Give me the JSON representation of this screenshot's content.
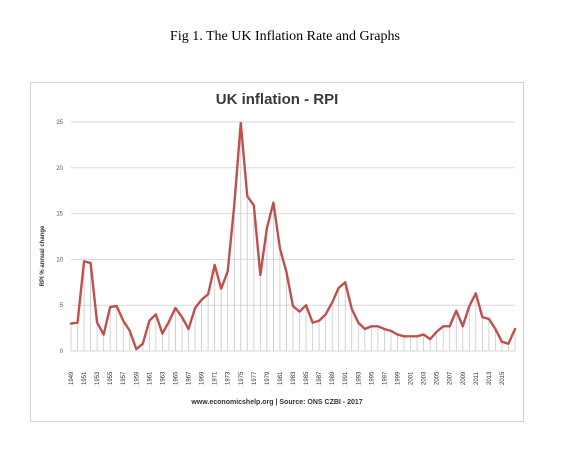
{
  "caption": "Fig 1. The UK Inflation Rate and Graphs",
  "chart_data": {
    "type": "line",
    "title": "UK inflation - RPI",
    "ylabel": "RPI % annual change",
    "xlabel": "",
    "source": "www.economicshelp.org | Source: ONS CZBI - 2017",
    "ylim": [
      0,
      25
    ],
    "yticks": [
      0,
      5,
      10,
      15,
      20,
      25
    ],
    "grid": "horizontal",
    "legend": "none",
    "line_color": "#c0504d",
    "x": [
      1949,
      1950,
      1951,
      1952,
      1953,
      1954,
      1955,
      1956,
      1957,
      1958,
      1959,
      1960,
      1961,
      1962,
      1963,
      1964,
      1965,
      1966,
      1967,
      1968,
      1969,
      1970,
      1971,
      1972,
      1973,
      1974,
      1975,
      1976,
      1977,
      1978,
      1979,
      1980,
      1981,
      1982,
      1983,
      1984,
      1985,
      1986,
      1987,
      1988,
      1989,
      1990,
      1991,
      1992,
      1993,
      1994,
      1995,
      1996,
      1997,
      1998,
      1999,
      2000,
      2001,
      2002,
      2003,
      2004,
      2005,
      2006,
      2007,
      2008,
      2009,
      2010,
      2011,
      2012,
      2013,
      2014,
      2015,
      2016,
      2017
    ],
    "xtick_labels": [
      "1949",
      "1951",
      "1953",
      "1955",
      "1957",
      "1959",
      "1961",
      "1963",
      "1965",
      "1967",
      "1969",
      "1971",
      "1973",
      "1975",
      "1977",
      "1979",
      "1981",
      "1983",
      "1985",
      "1987",
      "1989",
      "1991",
      "1993",
      "1995",
      "1997",
      "1999",
      "2001",
      "2003",
      "2005",
      "2007",
      "2009",
      "2011",
      "2013",
      "2015"
    ],
    "series": [
      {
        "values": [
          3.0,
          3.1,
          9.8,
          9.6,
          3.1,
          1.8,
          4.8,
          4.9,
          3.3,
          2.2,
          0.2,
          0.8,
          3.3,
          4.0,
          1.9,
          3.2,
          4.7,
          3.7,
          2.4,
          4.7,
          5.6,
          6.2,
          9.4,
          6.8,
          8.7,
          15.9,
          24.9,
          16.9,
          15.9,
          8.3,
          13.4,
          16.2,
          11.2,
          8.6,
          4.9,
          4.3,
          5.0,
          3.1,
          3.3,
          4.0,
          5.3,
          6.9,
          7.5,
          4.6,
          3.1,
          2.4,
          2.7,
          2.7,
          2.4,
          2.2,
          1.8,
          1.6,
          1.6,
          1.6,
          1.8,
          1.3,
          2.1,
          2.7,
          2.7,
          4.4,
          2.7,
          4.9,
          6.3,
          3.7,
          3.5,
          2.4,
          1.0,
          0.8,
          2.4
        ]
      }
    ]
  }
}
